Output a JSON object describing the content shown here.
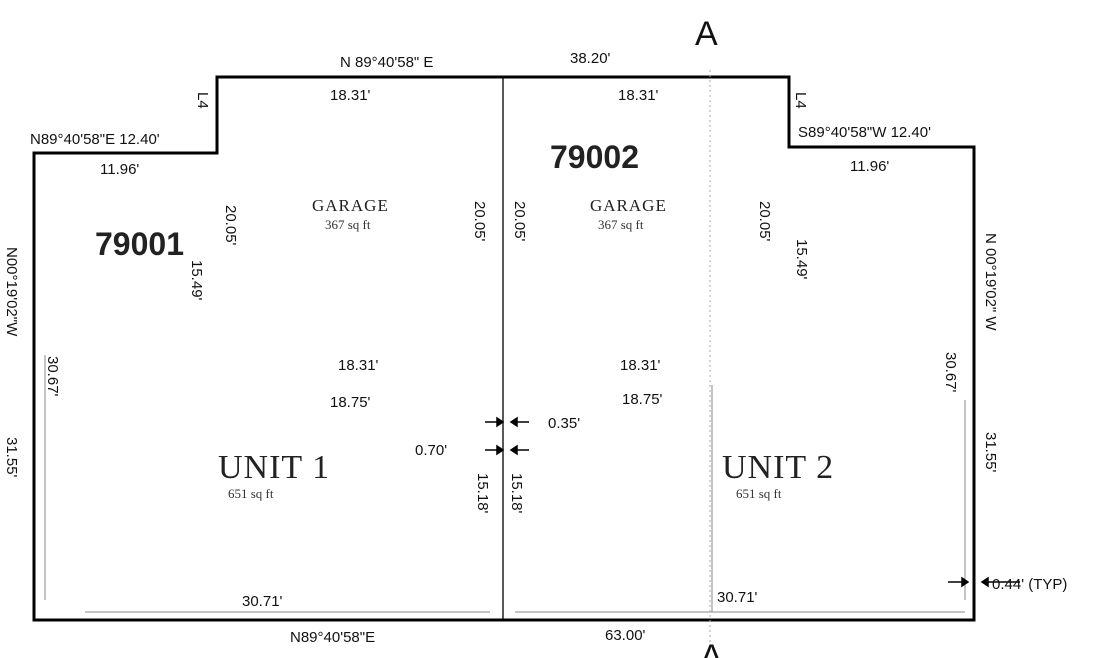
{
  "section": {
    "label": "A"
  },
  "units": {
    "left": {
      "id": "79001",
      "garage": "GARAGE",
      "garage_area": "367 sq ft",
      "unit": "UNIT 1",
      "unit_area": "651 sq ft"
    },
    "right": {
      "id": "79002",
      "garage": "GARAGE",
      "garage_area": "367 sq ft",
      "unit": "UNIT 2",
      "unit_area": "651 sq ft"
    }
  },
  "bearings": {
    "top": "N 89°40'58\" E",
    "top_left_step": "N89°40'58\"E  12.40'",
    "top_right_step": "S89°40'58\"W  12.40'",
    "left_side": "N00°19'02\"W",
    "right_side": "N 00°19'02\" W",
    "bottom": "N89°40'58\"E",
    "left_line": "L4",
    "right_line": "L4"
  },
  "dimensions": {
    "top_total": "38.20'",
    "bottom_total": "63.00'",
    "left_garage_top": "18.31'",
    "right_garage_top": "18.31'",
    "left_step_width": "11.96'",
    "right_step_width": "11.96'",
    "left_garage_left": "20.05'",
    "left_garage_right": "20.05'",
    "right_garage_left": "20.05'",
    "right_garage_right": "20.05'",
    "left_inner_vertical": "15.49'",
    "right_inner_vertical": "15.49'",
    "left_side_inner": "30.67'",
    "right_side_inner": "30.67'",
    "left_side_outer": "31.55'",
    "right_side_outer": "31.55'",
    "left_mid_a": "18.31'",
    "left_mid_b": "18.75'",
    "right_mid_a": "18.31'",
    "right_mid_b": "18.75'",
    "party_gap_left": "0.70'",
    "party_gap_right": "0.35'",
    "party_wall_length": "15.18'",
    "bottom_left": "30.71'",
    "bottom_right": "30.71'",
    "wall_offset": "0.44' (TYP)"
  }
}
